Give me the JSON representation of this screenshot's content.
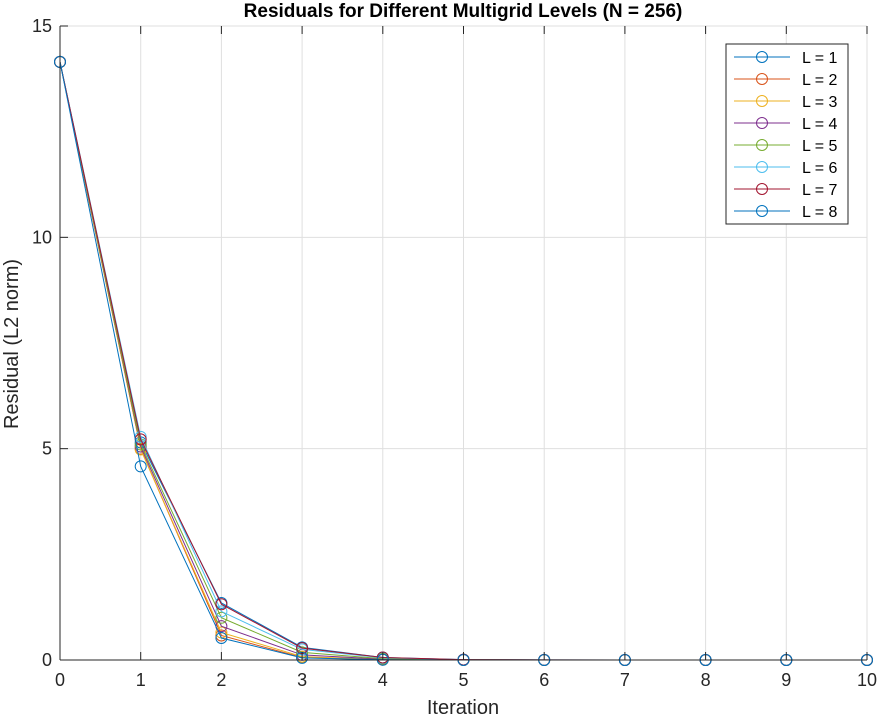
{
  "chart_data": {
    "type": "line",
    "title": "Residuals for Different Multigrid Levels (N = 256)",
    "xlabel": "Iteration",
    "ylabel": "Residual (L2 norm)",
    "xlim": [
      0,
      10
    ],
    "ylim": [
      0,
      15
    ],
    "xticks": [
      "0",
      "1",
      "2",
      "3",
      "4",
      "5",
      "6",
      "7",
      "8",
      "9",
      "10"
    ],
    "yticks": [
      "0",
      "5",
      "10",
      "15"
    ],
    "grid": true,
    "legend_position": "top-right",
    "marker": "circle",
    "x": [
      0,
      1,
      2,
      3,
      4,
      5,
      6,
      7,
      8,
      9,
      10
    ],
    "series": [
      {
        "name": "L = 1",
        "color": "#0072BD",
        "values": [
          14.15,
          5.15,
          1.35,
          0.3,
          0.06,
          0.01,
          0.002,
          0.0005,
          0.0001,
          0,
          0
        ]
      },
      {
        "name": "L = 2",
        "color": "#D95319",
        "values": [
          14.15,
          5.0,
          0.58,
          0.06,
          0.008,
          0.001,
          0.0002,
          0.0001,
          0,
          0,
          0
        ]
      },
      {
        "name": "L = 3",
        "color": "#EDB120",
        "values": [
          14.15,
          4.98,
          0.65,
          0.08,
          0.01,
          0.002,
          0.0003,
          0.0001,
          0,
          0,
          0
        ]
      },
      {
        "name": "L = 4",
        "color": "#7E2F8E",
        "values": [
          14.15,
          5.05,
          0.8,
          0.12,
          0.02,
          0.003,
          0.0005,
          0.0001,
          0,
          0,
          0
        ]
      },
      {
        "name": "L = 5",
        "color": "#77AC30",
        "values": [
          14.15,
          5.1,
          1.0,
          0.18,
          0.03,
          0.005,
          0.001,
          0.0002,
          0,
          0,
          0
        ]
      },
      {
        "name": "L = 6",
        "color": "#4DBEEE",
        "values": [
          14.15,
          5.28,
          1.15,
          0.25,
          0.05,
          0.008,
          0.001,
          0.0002,
          0,
          0,
          0
        ]
      },
      {
        "name": "L = 7",
        "color": "#A2142F",
        "values": [
          14.15,
          5.22,
          1.32,
          0.28,
          0.06,
          0.01,
          0.002,
          0.0003,
          0,
          0,
          0
        ]
      },
      {
        "name": "L = 8",
        "color": "#0072BD",
        "values": [
          14.15,
          4.58,
          0.52,
          0.05,
          0.005,
          0.001,
          0.0002,
          0.0001,
          0,
          0,
          0
        ]
      }
    ]
  }
}
